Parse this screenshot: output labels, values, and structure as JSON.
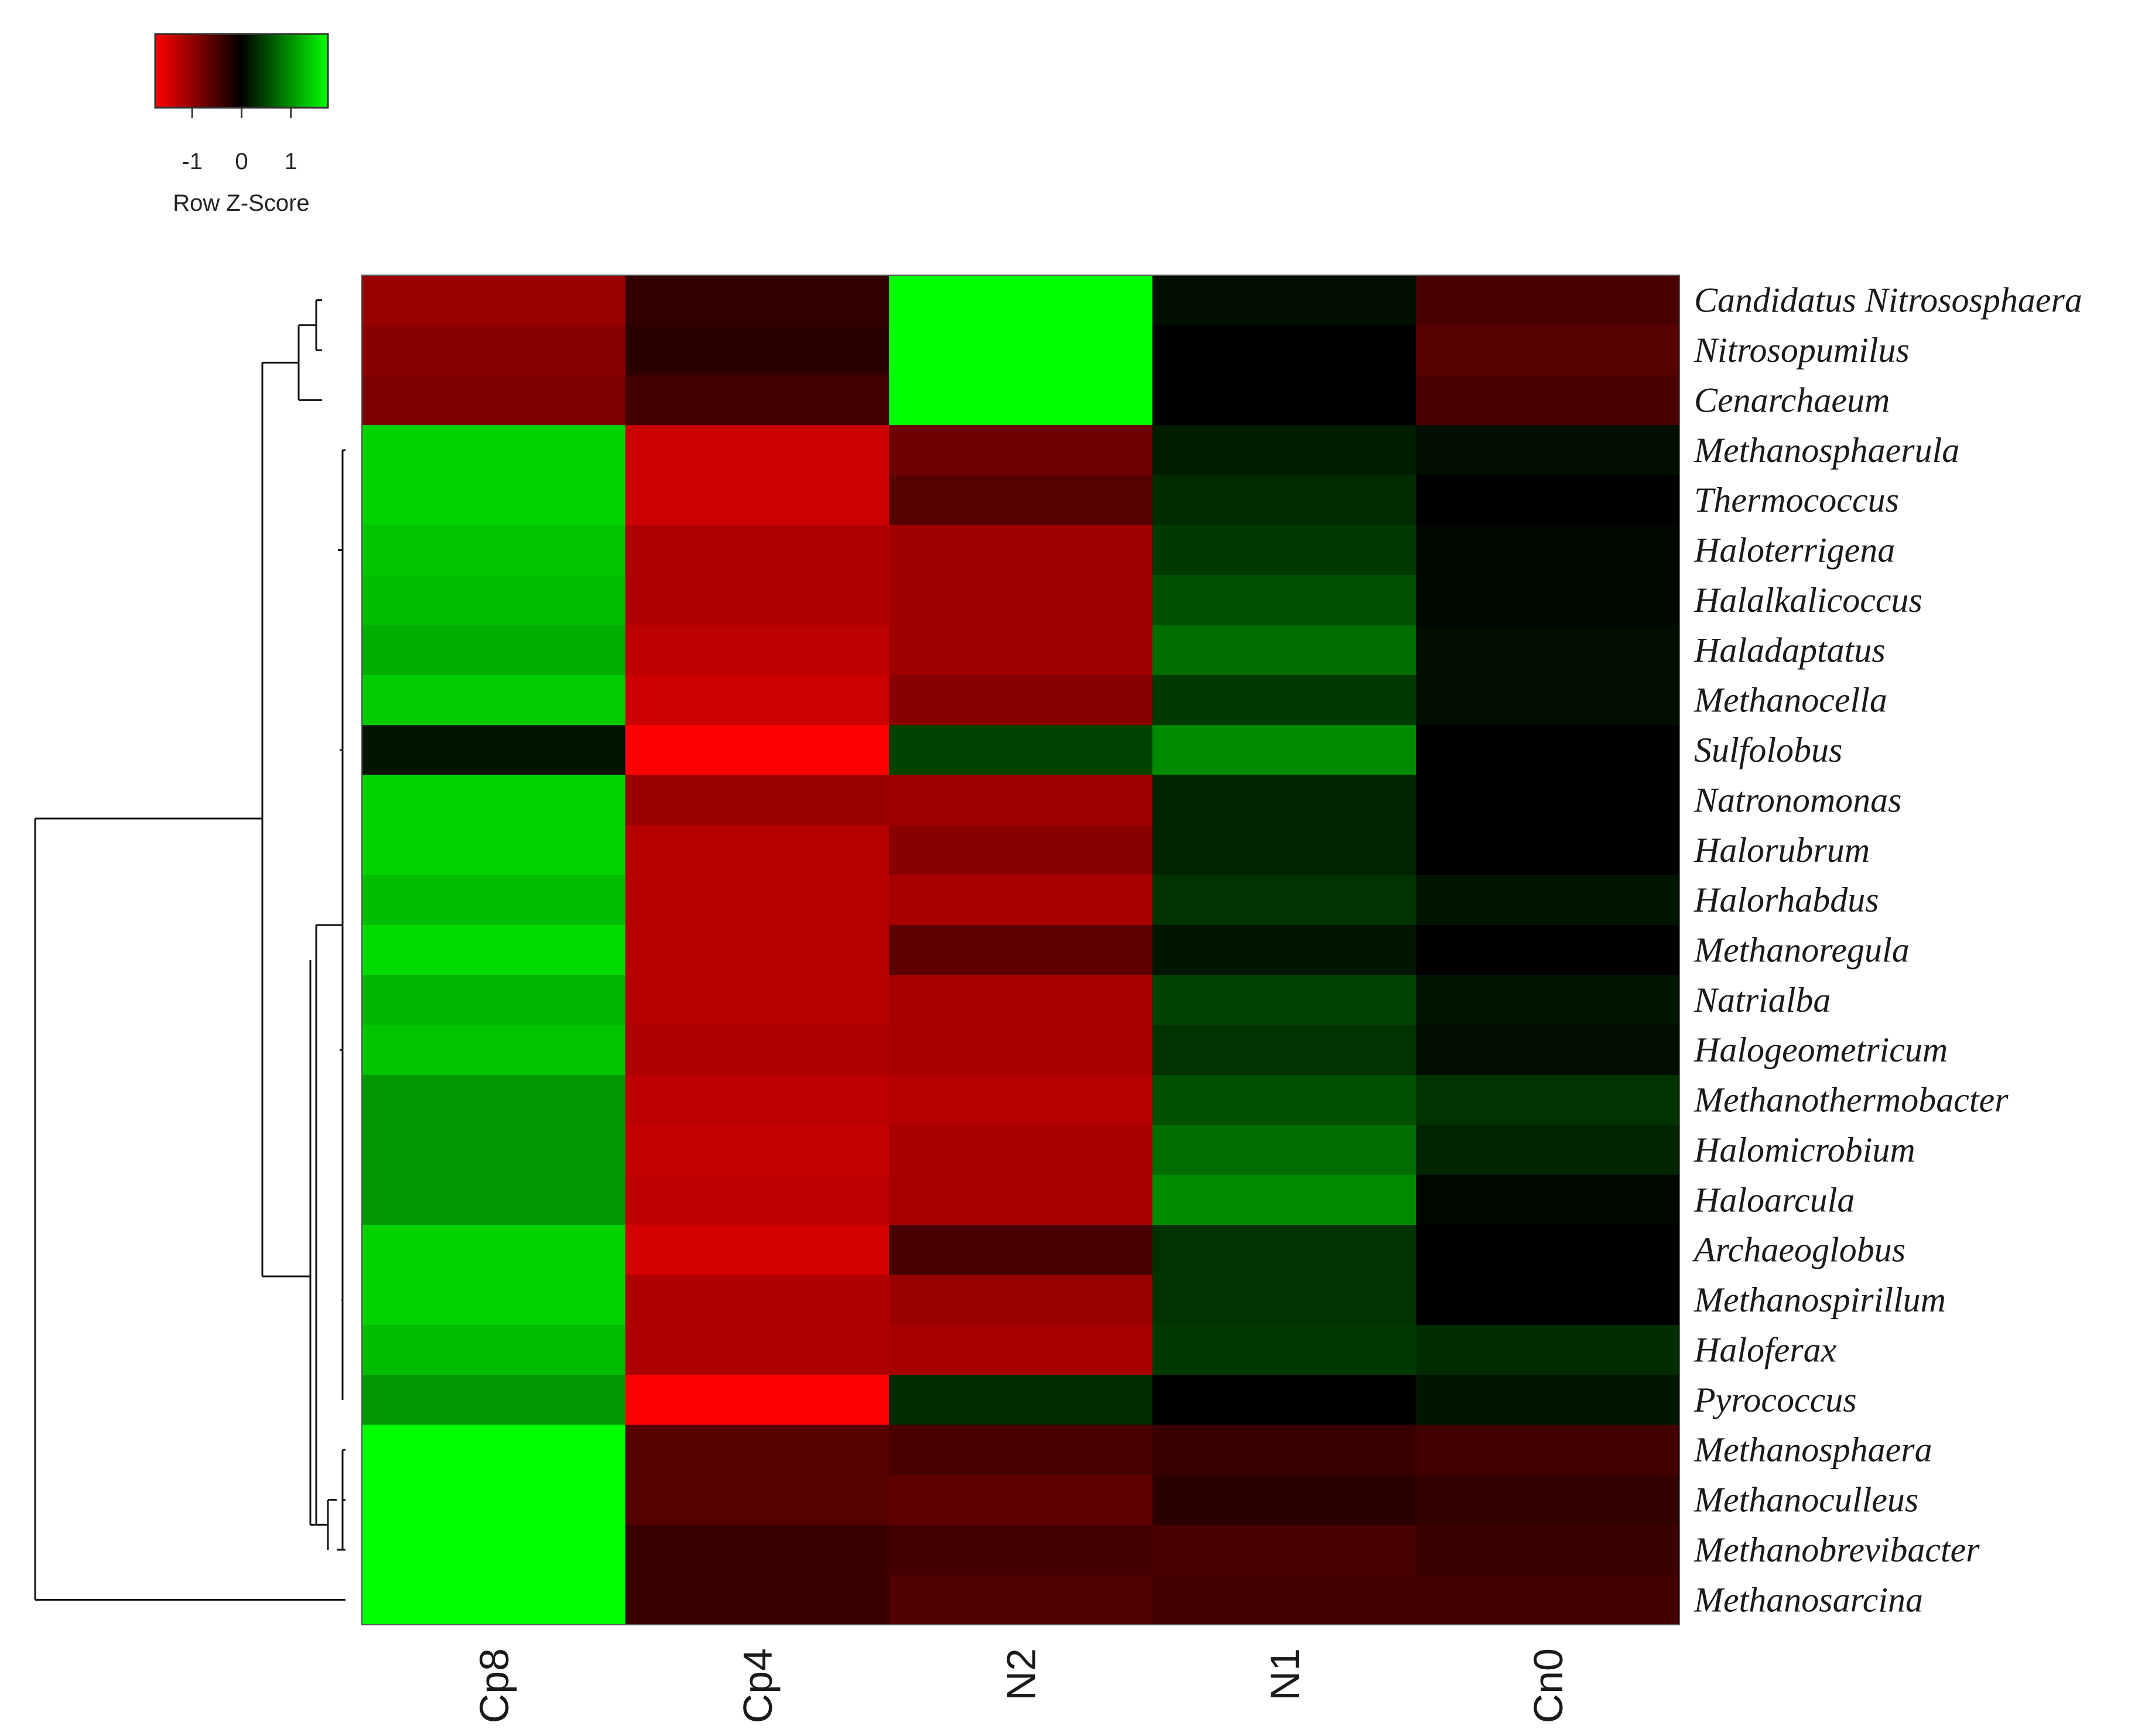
{
  "chart_data": {
    "type": "heatmap",
    "color_key": {
      "title": "Row Z-Score",
      "ticks": [
        "-1",
        "0",
        "1"
      ],
      "tick_values": [
        -1,
        0,
        1
      ],
      "range": [
        -1.75,
        1.75
      ],
      "low_color": "#ff0000",
      "mid_color": "#000000",
      "high_color": "#00ff00"
    },
    "columns": [
      "Cp8",
      "Cp4",
      "N2",
      "N1",
      "Cn0"
    ],
    "rows": [
      "Candidatus Nitrososphaera",
      "Nitrosopumilus",
      "Cenarchaeum",
      "Methanosphaerula",
      "Thermococcus",
      "Haloterrigena",
      "Halalkalicoccus",
      "Haladaptatus",
      "Methanocella",
      "Sulfolobus",
      "Natronomonas",
      "Halorubrum",
      "Halorhabdus",
      "Methanoregula",
      "Natrialba",
      "Halogeometricum",
      "Methanothermobacter",
      "Halomicrobium",
      "Haloarcula",
      "Archaeoglobus",
      "Methanospirillum",
      "Haloferax",
      "Pyrococcus",
      "Methanosphaera",
      "Methanoculleus",
      "Methanobrevibacter",
      "Methanosarcina"
    ],
    "values": [
      [
        -1.05,
        -0.35,
        1.75,
        0.1,
        -0.5
      ],
      [
        -0.95,
        -0.3,
        1.75,
        0.0,
        -0.6
      ],
      [
        -0.85,
        -0.45,
        1.75,
        0.0,
        -0.5
      ],
      [
        1.45,
        -1.4,
        -0.75,
        0.2,
        0.1
      ],
      [
        1.45,
        -1.4,
        -0.6,
        0.3,
        0.0
      ],
      [
        1.35,
        -1.2,
        -1.1,
        0.4,
        0.05
      ],
      [
        1.3,
        -1.2,
        -1.1,
        0.55,
        0.05
      ],
      [
        1.2,
        -1.3,
        -1.1,
        0.75,
        0.1
      ],
      [
        1.4,
        -1.4,
        -0.95,
        0.4,
        0.1
      ],
      [
        0.15,
        -1.75,
        0.45,
        0.95,
        0.0
      ],
      [
        1.45,
        -1.05,
        -1.1,
        0.25,
        0.0
      ],
      [
        1.45,
        -1.25,
        -0.95,
        0.25,
        0.0
      ],
      [
        1.3,
        -1.25,
        -1.15,
        0.35,
        0.15
      ],
      [
        1.5,
        -1.25,
        -0.65,
        0.15,
        0.0
      ],
      [
        1.25,
        -1.25,
        -1.15,
        0.45,
        0.15
      ],
      [
        1.35,
        -1.2,
        -1.15,
        0.35,
        0.1
      ],
      [
        1.05,
        -1.3,
        -1.25,
        0.55,
        0.35
      ],
      [
        1.05,
        -1.35,
        -1.15,
        0.75,
        0.25
      ],
      [
        1.05,
        -1.3,
        -1.15,
        0.95,
        0.05
      ],
      [
        1.45,
        -1.45,
        -0.5,
        0.35,
        0.0
      ],
      [
        1.45,
        -1.2,
        -1.05,
        0.35,
        0.0
      ],
      [
        1.3,
        -1.2,
        -1.15,
        0.4,
        0.3
      ],
      [
        1.05,
        -1.75,
        0.3,
        0.0,
        0.15
      ],
      [
        1.75,
        -0.6,
        -0.5,
        -0.4,
        -0.45
      ],
      [
        1.75,
        -0.6,
        -0.65,
        -0.3,
        -0.35
      ],
      [
        1.75,
        -0.4,
        -0.45,
        -0.5,
        -0.4
      ],
      [
        1.75,
        -0.4,
        -0.55,
        -0.45,
        -0.45
      ]
    ]
  }
}
